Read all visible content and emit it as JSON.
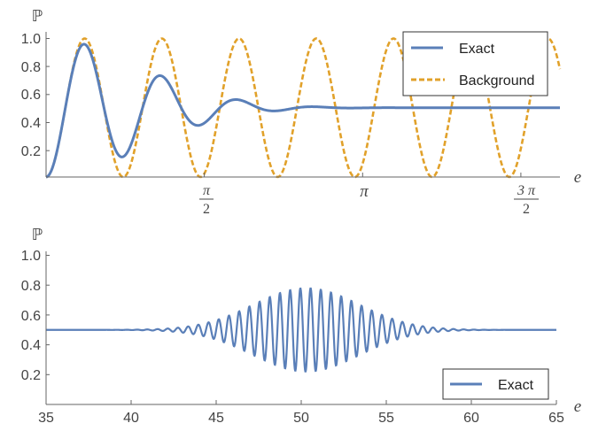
{
  "colors": {
    "exact": "#5a7fb8",
    "background": "#e1a12a",
    "axis": "#666666"
  },
  "chart_data": [
    {
      "type": "line",
      "xlabel": "e",
      "ylabel": "ℙ",
      "xlim": [
        0,
        5.1
      ],
      "ylim": [
        0,
        1.07
      ],
      "yticks": [
        "0.2",
        "0.4",
        "0.6",
        "0.8",
        "1.0"
      ],
      "xticks": [
        {
          "value": 1.5708,
          "numerator": "π",
          "denominator": "2"
        },
        {
          "value": 3.1416,
          "label": "π"
        },
        {
          "value": 4.7124,
          "numerator": "3 π",
          "denominator": "2"
        }
      ],
      "legend": {
        "position": "top-right",
        "entries": [
          "Exact",
          "Background"
        ]
      },
      "series": [
        {
          "name": "Exact",
          "style": "solid",
          "model": "P = 0.5 - 0.5·exp(-(e/1.3)²)·cos(8.2·e)",
          "points_sampled": 500
        },
        {
          "name": "Background",
          "style": "dashed",
          "model": "P = 0.5 - 0.5·cos(8.2·e)",
          "points_sampled": 500
        }
      ]
    },
    {
      "type": "line",
      "xlabel": "e",
      "ylabel": "ℙ",
      "xlim": [
        35,
        65
      ],
      "ylim": [
        0,
        1.0
      ],
      "yticks": [
        "0.2",
        "0.4",
        "0.6",
        "0.8",
        "1.0"
      ],
      "xticks": [
        "35",
        "40",
        "45",
        "50",
        "55",
        "60",
        "65"
      ],
      "legend": {
        "position": "bottom-right",
        "entries": [
          "Exact"
        ]
      },
      "series": [
        {
          "name": "Exact",
          "style": "solid",
          "model": "P = 0.5 + 0.28·exp(-((e-50.3)/4.4)²)·sin(2π·e/0.6)",
          "points_sampled": 1500
        }
      ]
    }
  ]
}
